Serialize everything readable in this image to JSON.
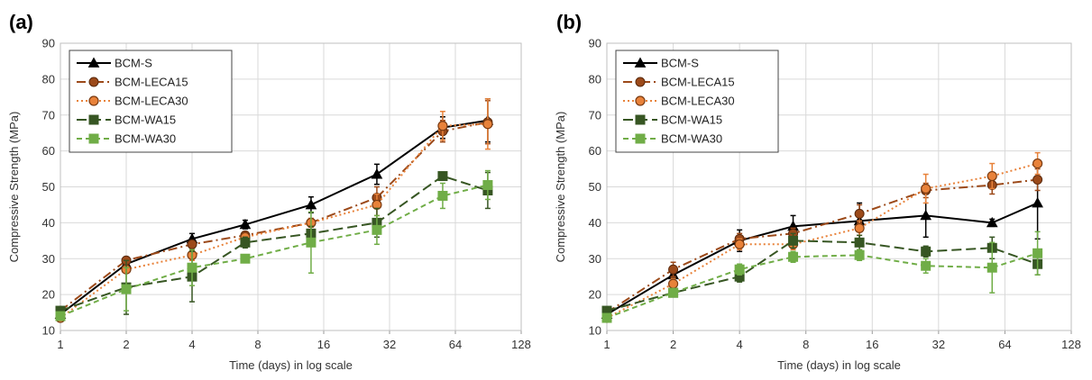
{
  "chart_data": [
    {
      "type": "line",
      "panel_label": "(a)",
      "xlabel": "Time (days) in log scale",
      "ylabel": "Compressive Strength (MPa)",
      "x_scale": "log2",
      "xlim": [
        1,
        128
      ],
      "xticks": [
        "1",
        "2",
        "4",
        "8",
        "16",
        "32",
        "64",
        "128"
      ],
      "ylim": [
        10,
        90
      ],
      "yticks": [
        "10",
        "20",
        "30",
        "40",
        "50",
        "60",
        "70",
        "80",
        "90"
      ],
      "grid": true,
      "legend_position": "top-left",
      "x": [
        1,
        2,
        4,
        7,
        14,
        28,
        56,
        90
      ],
      "series": [
        {
          "name": "BCM-S",
          "color": "#000000",
          "marker": "triangle",
          "dash": "solid",
          "values": [
            14.5,
            28.5,
            35.5,
            39.5,
            45,
            53.5,
            66.5,
            68.5
          ],
          "errors": [
            0.5,
            0.8,
            1.5,
            1.2,
            2.2,
            2.8,
            3,
            6
          ]
        },
        {
          "name": "BCM-LECA15",
          "color": "#9c4a1a",
          "marker": "circle",
          "dash": "longdash-dot",
          "values": [
            15.5,
            29.5,
            34,
            36.5,
            40,
            47,
            65.5,
            68
          ],
          "errors": [
            0.8,
            1,
            1,
            1,
            1.2,
            3,
            3,
            6
          ]
        },
        {
          "name": "BCM-LECA30",
          "color": "#e8823a",
          "marker": "circle-open",
          "dash": "dot",
          "values": [
            13.5,
            27,
            31,
            36,
            40,
            45,
            67,
            67.5
          ],
          "errors": [
            0.8,
            1,
            1.5,
            1,
            1.2,
            3,
            4,
            7
          ]
        },
        {
          "name": "BCM-WA15",
          "color": "#375623",
          "marker": "square",
          "dash": "longdash",
          "values": [
            15.5,
            22,
            25,
            34.5,
            37,
            40,
            53,
            49
          ],
          "errors": [
            1,
            7.5,
            7,
            1.5,
            2,
            4,
            1,
            5
          ]
        },
        {
          "name": "BCM-WA30",
          "color": "#70ad47",
          "marker": "square",
          "dash": "dash",
          "values": [
            14,
            21.5,
            27.5,
            30,
            34.5,
            38,
            47.5,
            50.5
          ],
          "errors": [
            1,
            6,
            5,
            1,
            8.5,
            4,
            3.5,
            4
          ]
        }
      ]
    },
    {
      "type": "line",
      "panel_label": "(b)",
      "xlabel": "Time (days) in log scale",
      "ylabel": "Compressive Strength (MPa)",
      "x_scale": "log2",
      "xlim": [
        1,
        128
      ],
      "xticks": [
        "1",
        "2",
        "4",
        "8",
        "16",
        "32",
        "64",
        "128"
      ],
      "ylim": [
        10,
        90
      ],
      "yticks": [
        "10",
        "20",
        "30",
        "40",
        "50",
        "60",
        "70",
        "80",
        "90"
      ],
      "grid": true,
      "legend_position": "top-left",
      "x": [
        1,
        2,
        4,
        7,
        14,
        28,
        56,
        90
      ],
      "series": [
        {
          "name": "BCM-S",
          "color": "#000000",
          "marker": "triangle",
          "dash": "solid",
          "values": [
            14.5,
            25.5,
            35,
            39,
            40.5,
            42,
            40,
            45.5
          ],
          "errors": [
            0.5,
            1,
            3,
            3,
            5,
            6,
            1,
            10
          ]
        },
        {
          "name": "BCM-LECA15",
          "color": "#9c4a1a",
          "marker": "circle",
          "dash": "longdash-dot",
          "values": [
            15,
            27,
            35.5,
            37,
            42.5,
            49,
            50.5,
            52
          ],
          "errors": [
            0.8,
            2,
            1.5,
            1.5,
            2.5,
            2,
            2.5,
            3
          ]
        },
        {
          "name": "BCM-LECA30",
          "color": "#e8823a",
          "marker": "circle-open",
          "dash": "dot",
          "values": [
            13.5,
            23,
            34,
            34,
            38.5,
            49.5,
            53,
            56.5
          ],
          "errors": [
            0.8,
            1.5,
            1.5,
            1.5,
            2,
            4,
            3.5,
            3
          ]
        },
        {
          "name": "BCM-WA15",
          "color": "#375623",
          "marker": "square",
          "dash": "longdash",
          "values": [
            15.5,
            20.5,
            25,
            35,
            34.5,
            32,
            33,
            28.5
          ],
          "errors": [
            1,
            1,
            1.5,
            2,
            2,
            1.5,
            3,
            3
          ]
        },
        {
          "name": "BCM-WA30",
          "color": "#70ad47",
          "marker": "square",
          "dash": "dash",
          "values": [
            13.5,
            20.5,
            27,
            30.5,
            31,
            28,
            27.5,
            31.5
          ],
          "errors": [
            1,
            1,
            1.5,
            1.5,
            1.5,
            2,
            7,
            6
          ]
        }
      ]
    }
  ]
}
